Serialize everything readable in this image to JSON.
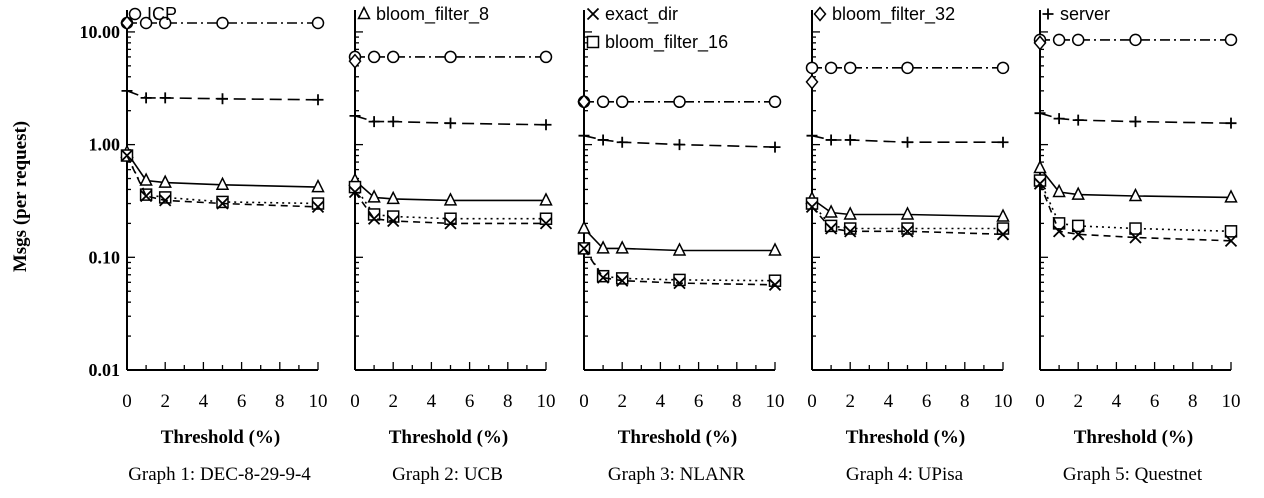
{
  "chart_data": {
    "type": "line",
    "ylabel": "Msgs (per request)",
    "yscale": "log",
    "ylim": [
      0.01,
      10
    ],
    "yticks": [
      "0.01",
      "0.10",
      "1.00",
      "10.00"
    ],
    "xlim": [
      0,
      10
    ],
    "xticks": [
      "0",
      "2",
      "4",
      "6",
      "8",
      "10"
    ],
    "x": [
      0,
      1,
      2,
      5,
      10
    ],
    "legend": [
      {
        "name": "ICP",
        "marker": "circle"
      },
      {
        "name": "bloom_filter_8",
        "marker": "triangle"
      },
      {
        "name": "exact_dir",
        "marker": "x"
      },
      {
        "name": "bloom_filter_16",
        "marker": "square"
      },
      {
        "name": "bloom_filter_32",
        "marker": "diamond"
      },
      {
        "name": "server",
        "marker": "plus"
      }
    ],
    "panels": [
      {
        "xlabel": "Threshold (%)",
        "caption": "Graph 1: DEC-8-29-9-4",
        "series": [
          {
            "name": "ICP",
            "values": [
              12,
              12,
              12,
              12,
              12
            ]
          },
          {
            "name": "server",
            "values": [
              3,
              2.6,
              2.6,
              2.55,
              2.5
            ]
          },
          {
            "name": "bloom_filter_8",
            "values": [
              0.85,
              0.48,
              0.46,
              0.44,
              0.42
            ]
          },
          {
            "name": "bloom_filter_16",
            "values": [
              0.8,
              0.36,
              0.34,
              0.31,
              0.3
            ]
          },
          {
            "name": "exact_dir",
            "values": [
              0.8,
              0.35,
              0.32,
              0.3,
              0.28
            ]
          },
          {
            "name": "bloom_filter_32",
            "values": [
              12,
              null,
              null,
              null,
              null
            ]
          }
        ]
      },
      {
        "xlabel": "Threshold (%)",
        "caption": "Graph 2: UCB",
        "series": [
          {
            "name": "ICP",
            "values": [
              6,
              6,
              6,
              6,
              6
            ]
          },
          {
            "name": "server",
            "values": [
              1.8,
              1.6,
              1.6,
              1.55,
              1.5
            ]
          },
          {
            "name": "bloom_filter_8",
            "values": [
              0.48,
              0.34,
              0.33,
              0.32,
              0.32
            ]
          },
          {
            "name": "bloom_filter_16",
            "values": [
              0.42,
              0.24,
              0.23,
              0.22,
              0.22
            ]
          },
          {
            "name": "exact_dir",
            "values": [
              0.38,
              0.22,
              0.21,
              0.2,
              0.2
            ]
          },
          {
            "name": "bloom_filter_32",
            "values": [
              5.5,
              null,
              null,
              null,
              null
            ]
          }
        ]
      },
      {
        "xlabel": "Threshold (%)",
        "caption": "Graph 3: NLANR",
        "series": [
          {
            "name": "ICP",
            "values": [
              2.4,
              2.4,
              2.4,
              2.4,
              2.4
            ]
          },
          {
            "name": "server",
            "values": [
              1.2,
              1.1,
              1.05,
              1.0,
              0.95
            ]
          },
          {
            "name": "bloom_filter_8",
            "values": [
              0.18,
              0.12,
              0.12,
              0.115,
              0.115
            ]
          },
          {
            "name": "bloom_filter_16",
            "values": [
              0.12,
              0.068,
              0.065,
              0.063,
              0.062
            ]
          },
          {
            "name": "exact_dir",
            "values": [
              0.12,
              0.066,
              0.062,
              0.059,
              0.057
            ]
          },
          {
            "name": "bloom_filter_32",
            "values": [
              2.4,
              null,
              null,
              null,
              null
            ]
          }
        ]
      },
      {
        "xlabel": "Threshold (%)",
        "caption": "Graph 4: UPisa",
        "series": [
          {
            "name": "ICP",
            "values": [
              4.8,
              4.8,
              4.8,
              4.8,
              4.8
            ]
          },
          {
            "name": "server",
            "values": [
              1.2,
              1.1,
              1.1,
              1.05,
              1.05
            ]
          },
          {
            "name": "bloom_filter_8",
            "values": [
              0.33,
              0.25,
              0.24,
              0.24,
              0.23
            ]
          },
          {
            "name": "bloom_filter_16",
            "values": [
              0.3,
              0.19,
              0.18,
              0.18,
              0.18
            ]
          },
          {
            "name": "exact_dir",
            "values": [
              0.28,
              0.18,
              0.17,
              0.17,
              0.16
            ]
          },
          {
            "name": "bloom_filter_32",
            "values": [
              3.6,
              null,
              null,
              null,
              null
            ]
          }
        ]
      },
      {
        "xlabel": "Threshold (%)",
        "caption": "Graph 5: Questnet",
        "series": [
          {
            "name": "ICP",
            "values": [
              8.5,
              8.5,
              8.5,
              8.5,
              8.5
            ]
          },
          {
            "name": "server",
            "values": [
              1.9,
              1.7,
              1.65,
              1.6,
              1.55
            ]
          },
          {
            "name": "bloom_filter_8",
            "values": [
              0.62,
              0.38,
              0.36,
              0.35,
              0.34
            ]
          },
          {
            "name": "bloom_filter_16",
            "values": [
              0.48,
              0.2,
              0.19,
              0.18,
              0.17
            ]
          },
          {
            "name": "exact_dir",
            "values": [
              0.45,
              0.17,
              0.16,
              0.15,
              0.14
            ]
          },
          {
            "name": "bloom_filter_32",
            "values": [
              8,
              null,
              null,
              null,
              null
            ]
          }
        ]
      }
    ]
  }
}
